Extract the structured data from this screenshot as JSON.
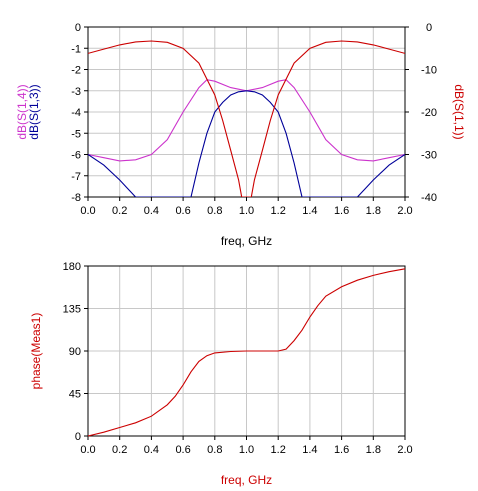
{
  "colors": {
    "s14": "#cc33cc",
    "s13": "#000099",
    "s11": "#cc0000",
    "phase": "#cc0000",
    "grid": "#c8c8c8",
    "frame": "#000000"
  },
  "chart_data": [
    {
      "type": "line",
      "xlabel": "freq, GHz",
      "ylabel_left": [
        "dB(S(1,4))",
        "dB(S(1,3))"
      ],
      "ylabel_right": "dB(S(1,1))",
      "xlim": [
        0.0,
        2.0
      ],
      "ylim_left": [
        -8,
        0
      ],
      "ylim_right": [
        -40,
        0
      ],
      "grid": true,
      "legend": "none",
      "x_ticks": [
        "0.0",
        "0.2",
        "0.4",
        "0.6",
        "0.8",
        "1.0",
        "1.2",
        "1.4",
        "1.6",
        "1.8",
        "2.0"
      ],
      "y_ticks_left": [
        "0",
        "-1",
        "-2",
        "-3",
        "-4",
        "-5",
        "-6",
        "-7",
        "-8"
      ],
      "y_ticks_right": [
        "0",
        "-10",
        "-20",
        "-30",
        "-40"
      ],
      "series": [
        {
          "name": "dB(S(1,4))",
          "axis": "left",
          "color_key": "s14",
          "x": [
            0.0,
            0.1,
            0.2,
            0.3,
            0.4,
            0.5,
            0.6,
            0.7,
            0.75,
            0.8,
            0.9,
            1.0,
            1.1,
            1.2,
            1.25,
            1.3,
            1.4,
            1.5,
            1.6,
            1.7,
            1.8,
            1.9,
            2.0
          ],
          "y": [
            -6.0,
            -6.15,
            -6.3,
            -6.25,
            -6.0,
            -5.3,
            -4.0,
            -2.85,
            -2.48,
            -2.55,
            -2.85,
            -3.0,
            -2.85,
            -2.55,
            -2.48,
            -2.85,
            -4.0,
            -5.3,
            -6.0,
            -6.25,
            -6.3,
            -6.15,
            -6.0
          ]
        },
        {
          "name": "dB(S(1,3))",
          "axis": "left",
          "color_key": "s13",
          "x": [
            0.0,
            0.1,
            0.2,
            0.25,
            0.3,
            0.65,
            0.7,
            0.75,
            0.8,
            0.85,
            0.9,
            0.95,
            1.0,
            1.05,
            1.1,
            1.15,
            1.2,
            1.25,
            1.3,
            1.35,
            1.7,
            1.75,
            1.8,
            1.9,
            2.0
          ],
          "y": [
            -6.0,
            -6.5,
            -7.2,
            -7.6,
            -8.0,
            -8.0,
            -6.4,
            -5.0,
            -4.0,
            -3.55,
            -3.2,
            -3.05,
            -3.0,
            -3.05,
            -3.2,
            -3.55,
            -4.0,
            -5.0,
            -6.4,
            -8.0,
            -8.0,
            -7.6,
            -7.2,
            -6.5,
            -6.0
          ]
        },
        {
          "name": "dB(S(1,1))",
          "axis": "right",
          "color_key": "s11",
          "x": [
            0.0,
            0.1,
            0.2,
            0.3,
            0.4,
            0.5,
            0.6,
            0.7,
            0.8,
            0.85,
            0.9,
            0.95,
            0.97,
            1.03,
            1.05,
            1.1,
            1.15,
            1.2,
            1.3,
            1.4,
            1.5,
            1.6,
            1.7,
            1.8,
            1.9,
            2.0
          ],
          "y": [
            -6.2,
            -5.2,
            -4.2,
            -3.5,
            -3.3,
            -3.6,
            -5.0,
            -8.5,
            -16.0,
            -22.0,
            -29.0,
            -36.0,
            -40.0,
            -40.0,
            -36.0,
            -29.0,
            -22.0,
            -16.0,
            -8.5,
            -5.0,
            -3.6,
            -3.3,
            -3.5,
            -4.2,
            -5.2,
            -6.2
          ]
        }
      ]
    },
    {
      "type": "line",
      "xlabel": "freq, GHz",
      "ylabel": "phase(Meas1)",
      "xlim": [
        0.0,
        2.0
      ],
      "ylim": [
        0,
        180
      ],
      "grid": true,
      "legend": "none",
      "x_ticks": [
        "0.0",
        "0.2",
        "0.4",
        "0.6",
        "0.8",
        "1.0",
        "1.2",
        "1.4",
        "1.6",
        "1.8",
        "2.0"
      ],
      "y_ticks": [
        "180",
        "135",
        "90",
        "45",
        "0"
      ],
      "series": [
        {
          "name": "phase(Meas1)",
          "color_key": "phase",
          "x": [
            0.0,
            0.1,
            0.2,
            0.3,
            0.4,
            0.5,
            0.55,
            0.6,
            0.65,
            0.7,
            0.75,
            0.8,
            0.9,
            1.0,
            1.1,
            1.2,
            1.25,
            1.3,
            1.35,
            1.4,
            1.45,
            1.5,
            1.6,
            1.7,
            1.8,
            1.9,
            2.0
          ],
          "y": [
            0,
            4,
            9,
            14,
            21,
            33,
            42,
            54,
            68,
            79,
            85,
            88,
            89.5,
            90,
            90,
            90,
            92,
            101,
            112,
            126,
            138,
            148,
            158,
            165,
            170,
            174,
            177
          ]
        }
      ]
    }
  ]
}
